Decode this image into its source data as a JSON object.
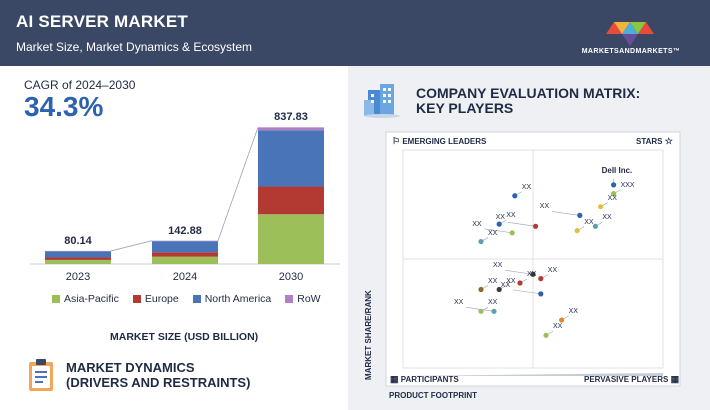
{
  "header": {
    "title": "AI SERVER MARKET",
    "subtitle": "Market Size, Market Dynamics & Ecosystem",
    "brand": "MARKETSANDMARKETS™"
  },
  "cagr": {
    "label": "CAGR of 2024–2030",
    "value": "34.3%"
  },
  "chart_data": [
    {
      "type": "bar",
      "stacked": true,
      "categories": [
        "2023",
        "2024",
        "2030"
      ],
      "totals": [
        "80.14",
        "142.88",
        "837.83"
      ],
      "series": [
        {
          "name": "Asia-Pacific",
          "color": "#9cbf5a",
          "values": [
            25,
            45,
            305
          ]
        },
        {
          "name": "Europe",
          "color": "#b23a32",
          "values": [
            15,
            27,
            170
          ]
        },
        {
          "name": "North America",
          "color": "#4a74b8",
          "values": [
            38,
            68,
            345
          ]
        },
        {
          "name": "RoW",
          "color": "#b07fc4",
          "values": [
            2.14,
            2.88,
            17.83
          ]
        }
      ],
      "xlabel": "MARKET SIZE (USD BILLION)",
      "ylim": [
        0,
        840
      ]
    },
    {
      "type": "scatter",
      "title": "COMPANY EVALUATION MATRIX: KEY PLAYERS",
      "xlabel": "PRODUCT FOOTPRINT",
      "ylabel": "MARKET SHARE/RANK",
      "xlim": [
        0,
        100
      ],
      "ylim": [
        0,
        100
      ],
      "quadrants": [
        "EMERGING LEADERS",
        "STARS",
        "PARTICIPANTS",
        "PERVASIVE PLAYERS"
      ],
      "points": [
        {
          "label": "Dell Inc.",
          "x": 81,
          "y": 84,
          "color": "#2e61b0"
        },
        {
          "label": "XXX",
          "x": 81,
          "y": 80,
          "color": "#9cbf5a"
        },
        {
          "label": "XX",
          "x": 76,
          "y": 74,
          "color": "#e0c040"
        },
        {
          "label": "XX",
          "x": 68,
          "y": 70,
          "color": "#2e61b0"
        },
        {
          "label": "XX",
          "x": 74,
          "y": 65,
          "color": "#5aa0b0"
        },
        {
          "label": "XX",
          "x": 67,
          "y": 63,
          "color": "#e0c040"
        },
        {
          "label": "XX",
          "x": 51,
          "y": 65,
          "color": "#b23a32"
        },
        {
          "label": "XX",
          "x": 43,
          "y": 79,
          "color": "#2e61b0"
        },
        {
          "label": "XX",
          "x": 37,
          "y": 66,
          "color": "#2e61b0"
        },
        {
          "label": "XX",
          "x": 42,
          "y": 62,
          "color": "#9cbf5a"
        },
        {
          "label": "XX",
          "x": 30,
          "y": 58,
          "color": "#5aa0b0"
        },
        {
          "label": "XX",
          "x": 45,
          "y": 39,
          "color": "#b23a32"
        },
        {
          "label": "XX",
          "x": 50,
          "y": 43,
          "color": "#3a3a3a"
        },
        {
          "label": "XX",
          "x": 53,
          "y": 41,
          "color": "#b23a32"
        },
        {
          "label": "XX",
          "x": 37,
          "y": 36,
          "color": "#3a3a3a"
        },
        {
          "label": "XX",
          "x": 53,
          "y": 34,
          "color": "#2e61b0"
        },
        {
          "label": "XX",
          "x": 30,
          "y": 36,
          "color": "#8a6a30"
        },
        {
          "label": "XX",
          "x": 30,
          "y": 26,
          "color": "#9cbf5a"
        },
        {
          "label": "XX",
          "x": 35,
          "y": 26,
          "color": "#5aa0b0"
        },
        {
          "label": "XX",
          "x": 61,
          "y": 22,
          "color": "#e08a30"
        },
        {
          "label": "XX",
          "x": 55,
          "y": 15,
          "color": "#9cbf5a"
        }
      ]
    }
  ],
  "dynamics": {
    "line1": "MARKET DYNAMICS",
    "line2": "(DRIVERS AND RESTRAINTS)"
  },
  "matrix": {
    "title_line1": "COMPANY EVALUATION MATRIX:",
    "title_line2": "KEY PLAYERS"
  }
}
